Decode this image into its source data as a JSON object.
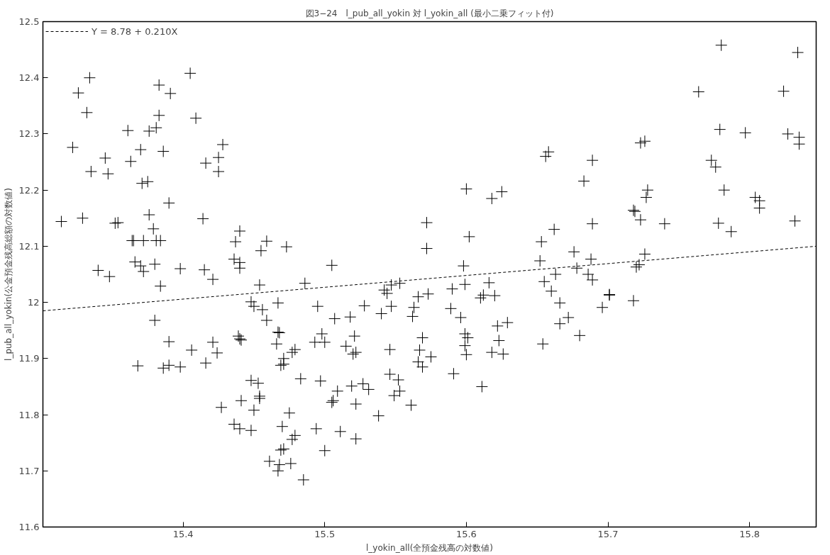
{
  "chart_data": {
    "type": "scatter",
    "title": "図3−24　l_pub_all_yokin 対 l_yokin_all (最小二乗フィット付)",
    "xlabel": "l_yokin_all(全預金残高の対数値)",
    "ylabel": "l_pub_all_yokin(公金預金残高総額の対数値)",
    "xlim": [
      15.301,
      15.847
    ],
    "ylim": [
      11.6,
      12.5
    ],
    "xticks": [
      15.4,
      15.5,
      15.6,
      15.7,
      15.8
    ],
    "yticks": [
      11.6,
      11.7,
      11.8,
      11.9,
      12,
      12.1,
      12.2,
      12.3,
      12.4,
      12.5
    ],
    "grid": false,
    "legend": "top left",
    "marker": "cross",
    "series": [
      {
        "color": "#000000",
        "x": [
          15.314,
          15.322,
          15.326,
          15.334,
          15.332,
          15.329,
          15.335,
          15.34,
          15.345,
          15.348,
          15.347,
          15.352,
          15.354,
          15.361,
          15.363,
          15.364,
          15.365,
          15.37,
          15.366,
          15.37,
          15.372,
          15.371,
          15.375,
          15.372,
          15.376,
          15.381,
          15.376,
          15.379,
          15.38,
          15.381,
          15.384,
          15.383,
          15.383,
          15.391,
          15.386,
          15.39,
          15.384,
          15.398,
          15.405,
          15.409,
          15.414,
          15.416,
          15.415,
          15.421,
          15.425,
          15.425,
          15.428,
          15.437,
          15.44,
          15.436,
          15.44,
          15.44,
          15.455,
          15.459,
          15.454,
          15.448,
          15.45,
          15.456,
          15.459,
          15.38,
          15.39,
          15.368,
          15.386,
          15.39,
          15.398,
          15.406,
          15.416,
          15.421,
          15.424,
          15.439,
          15.44,
          15.441,
          15.427,
          15.441,
          15.448,
          15.453,
          15.454,
          15.454,
          15.45,
          15.436,
          15.44,
          15.448,
          15.473,
          15.505,
          15.486,
          15.467,
          15.495,
          15.528,
          15.542,
          15.544,
          15.547,
          15.553,
          15.547,
          15.563,
          15.566,
          15.573,
          15.572,
          15.572,
          15.6,
          15.602,
          15.598,
          15.599,
          15.59,
          15.589,
          15.618,
          15.625,
          15.616,
          15.61,
          15.612,
          15.62,
          15.54,
          15.562,
          15.507,
          15.518,
          15.596,
          15.622,
          15.629,
          15.467,
          15.468,
          15.498,
          15.466,
          15.493,
          15.5,
          15.521,
          15.569,
          15.599,
          15.601,
          15.623,
          15.515,
          15.546,
          15.567,
          15.599,
          15.6,
          15.618,
          15.626,
          15.479,
          15.477,
          15.52,
          15.522,
          15.575,
          15.566,
          15.569,
          15.471,
          15.471,
          15.469,
          15.483,
          15.497,
          15.509,
          15.506,
          15.505,
          15.519,
          15.527,
          15.531,
          15.522,
          15.546,
          15.552,
          15.553,
          15.549,
          15.561,
          15.538,
          15.591,
          15.611,
          15.475,
          15.47,
          15.494,
          15.511,
          15.479,
          15.477,
          15.522,
          15.5,
          15.469,
          15.471,
          15.461,
          15.468,
          15.476,
          15.467,
          15.485,
          15.78,
          15.834,
          15.764,
          15.824,
          15.779,
          15.797,
          15.827,
          15.835,
          15.835,
          15.723,
          15.726,
          15.656,
          15.658,
          15.689,
          15.773,
          15.776,
          15.683,
          15.728,
          15.727,
          15.782,
          15.804,
          15.807,
          15.807,
          15.718,
          15.719,
          15.723,
          15.74,
          15.778,
          15.787,
          15.832,
          15.689,
          15.662,
          15.653,
          15.652,
          15.676,
          15.688,
          15.726,
          15.72,
          15.722,
          15.678,
          15.663,
          15.686,
          15.655,
          15.689,
          15.66,
          15.666,
          15.701,
          15.701,
          15.718,
          15.696,
          15.672,
          15.666,
          15.68,
          15.654
        ],
        "values": [
          12.144,
          12.276,
          12.373,
          12.4,
          12.338,
          12.15,
          12.233,
          12.057,
          12.257,
          12.046,
          12.229,
          12.141,
          12.142,
          12.306,
          12.251,
          12.11,
          12.11,
          12.272,
          12.072,
          12.065,
          12.055,
          12.212,
          12.215,
          12.11,
          12.305,
          12.311,
          12.156,
          12.131,
          12.068,
          12.11,
          12.11,
          12.333,
          12.387,
          12.372,
          12.269,
          12.177,
          12.029,
          12.06,
          12.408,
          12.328,
          12.149,
          12.248,
          12.058,
          12.041,
          12.258,
          12.233,
          12.281,
          12.108,
          12.127,
          12.077,
          12.071,
          12.061,
          12.092,
          12.109,
          12.031,
          12.001,
          11.993,
          11.987,
          11.968,
          11.968,
          11.93,
          11.887,
          11.883,
          11.888,
          11.885,
          11.915,
          11.892,
          11.929,
          11.91,
          11.94,
          11.935,
          11.933,
          11.813,
          11.825,
          11.861,
          11.856,
          11.833,
          11.829,
          11.808,
          11.783,
          11.775,
          11.772,
          12.099,
          12.066,
          12.034,
          11.999,
          11.993,
          11.994,
          12.022,
          12.016,
          12.031,
          12.034,
          11.993,
          11.991,
          12.01,
          12.015,
          12.096,
          12.142,
          12.202,
          12.117,
          12.065,
          12.032,
          12.024,
          11.989,
          12.185,
          12.197,
          12.035,
          12.008,
          12.013,
          12.012,
          11.98,
          11.975,
          11.971,
          11.974,
          11.973,
          11.958,
          11.964,
          11.947,
          11.946,
          11.944,
          11.926,
          11.929,
          11.929,
          11.94,
          11.937,
          11.944,
          11.937,
          11.932,
          11.922,
          11.916,
          11.915,
          11.923,
          11.907,
          11.911,
          11.908,
          11.916,
          11.911,
          11.908,
          11.911,
          11.903,
          11.894,
          11.885,
          11.9,
          11.89,
          11.888,
          11.864,
          11.86,
          11.842,
          11.825,
          11.822,
          11.851,
          11.855,
          11.845,
          11.819,
          11.872,
          11.862,
          11.842,
          11.834,
          11.817,
          11.798,
          11.873,
          11.85,
          11.803,
          11.779,
          11.775,
          11.77,
          11.763,
          11.756,
          11.757,
          11.736,
          11.737,
          11.739,
          11.717,
          11.711,
          11.713,
          11.7,
          11.684,
          12.458,
          12.445,
          12.375,
          12.376,
          12.308,
          12.302,
          12.3,
          12.294,
          12.282,
          12.284,
          12.287,
          12.26,
          12.268,
          12.253,
          12.253,
          12.241,
          12.216,
          12.2,
          12.187,
          12.2,
          12.187,
          12.181,
          12.168,
          12.164,
          12.162,
          12.147,
          12.14,
          12.141,
          12.126,
          12.145,
          12.14,
          12.13,
          12.108,
          12.074,
          12.09,
          12.077,
          12.086,
          12.063,
          12.067,
          12.061,
          12.05,
          12.05,
          12.037,
          12.04,
          12.02,
          11.999,
          12.013,
          12.014,
          12.003,
          11.991,
          11.973,
          11.962,
          11.941,
          11.926
        ]
      },
      {
        "type": "line",
        "name": "Y = 8.78 + 0.210X",
        "color": "#000000",
        "line_style": "dashed",
        "marker": "none",
        "x": [
          15.301,
          15.847
        ],
        "values": [
          11.985,
          12.1
        ]
      }
    ]
  }
}
